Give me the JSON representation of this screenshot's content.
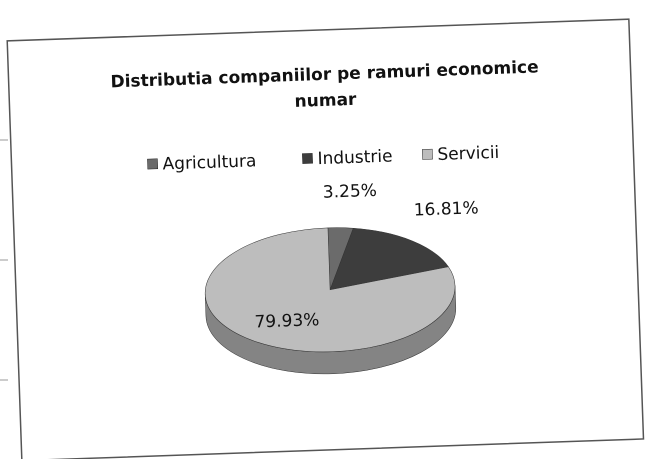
{
  "chart_data": {
    "type": "pie",
    "title": [
      "Distributia companiilor pe ramuri economice",
      "numar"
    ],
    "categories": [
      "Agricultura",
      "Industrie",
      "Servicii"
    ],
    "values": [
      3.25,
      16.81,
      79.93
    ],
    "value_labels": [
      "3.25%",
      "16.81%",
      "79.93%"
    ],
    "colors": [
      "#6b6b6b",
      "#3d3d3d",
      "#bdbdbd"
    ],
    "legend": "top"
  }
}
